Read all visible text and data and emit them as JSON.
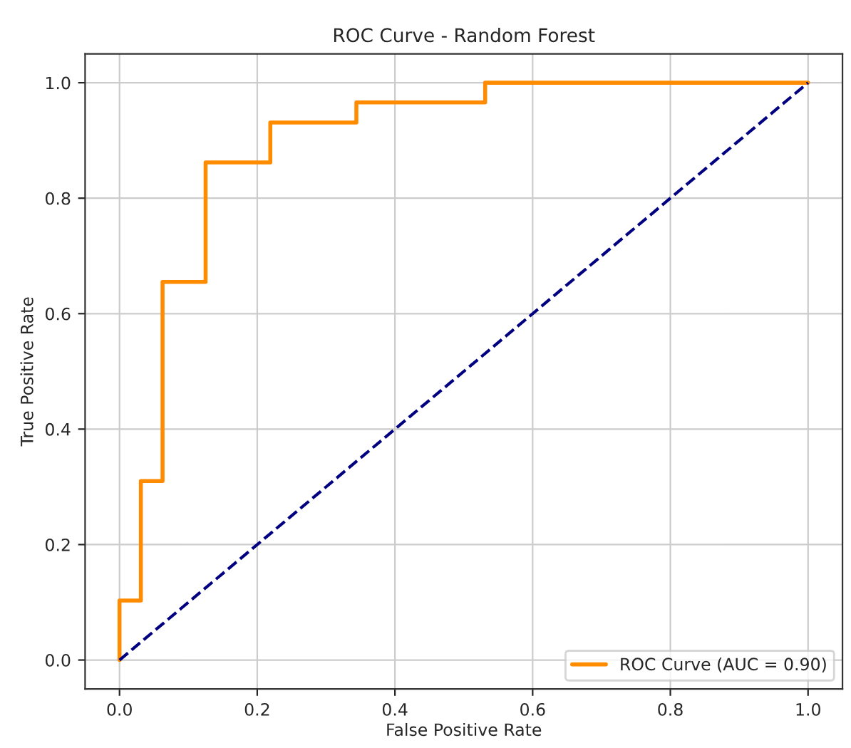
{
  "chart_data": {
    "type": "step",
    "title": "ROC Curve - Random Forest",
    "xlabel": "False Positive Rate",
    "ylabel": "True Positive Rate",
    "series": [
      {
        "name": "ROC Curve (AUC = 0.90)",
        "color": "#ff8c00",
        "line_style": "solid",
        "x": [
          0,
          0,
          0.031,
          0.0625,
          0.125,
          0.219,
          0.344,
          0.531,
          1
        ],
        "values": [
          0,
          0.103,
          0.31,
          0.655,
          0.862,
          0.931,
          0.966,
          1.0,
          1.0
        ]
      },
      {
        "type": "line",
        "color": "#000080",
        "line_style": "dashed",
        "x": [
          0,
          1
        ],
        "values": [
          0,
          1
        ]
      }
    ],
    "xlim": [
      -0.05,
      1.05
    ],
    "ylim": [
      -0.05,
      1.05
    ],
    "xticks": [
      {
        "value": 0,
        "label": "0.0"
      },
      {
        "value": 0.2,
        "label": "0.2"
      },
      {
        "value": 0.4,
        "label": "0.4"
      },
      {
        "value": 0.6,
        "label": "0.6"
      },
      {
        "value": 0.8,
        "label": "0.8"
      },
      {
        "value": 1,
        "label": "1.0"
      }
    ],
    "yticks": [
      {
        "value": 0,
        "label": "0.0"
      },
      {
        "value": 0.2,
        "label": "0.2"
      },
      {
        "value": 0.4,
        "label": "0.4"
      },
      {
        "value": 0.6,
        "label": "0.6"
      },
      {
        "value": 0.8,
        "label": "0.8"
      },
      {
        "value": 1,
        "label": "1.0"
      }
    ],
    "grid": true,
    "legend": "lower right"
  }
}
